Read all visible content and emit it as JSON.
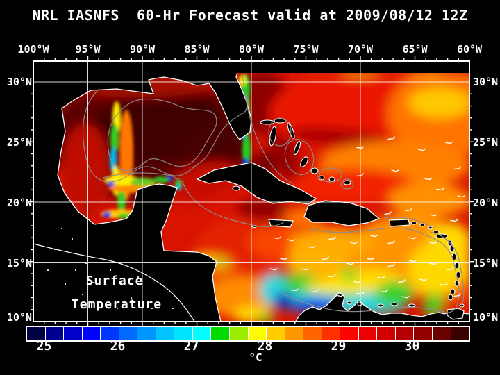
{
  "title": "NRL IASNFS  60-Hr Forecast valid at 2009/08/12 12Z",
  "map": {
    "top_axis_labels": [
      "100°W",
      "95°W",
      "90°W",
      "85°W",
      "80°W",
      "75°W",
      "70°W",
      "65°W",
      "60°W"
    ],
    "left_axis_labels": [
      "30°N",
      "25°N",
      "20°N",
      "15°N",
      "10°N"
    ],
    "right_axis_labels": [
      "30°N",
      "25°N",
      "20°N",
      "15°N",
      "10°N"
    ],
    "overlay_label": {
      "line1": "Surface",
      "line2": "Temperature"
    }
  },
  "colorbar": {
    "unit_label": "°C",
    "tick_labels": [
      "25",
      "26",
      "27",
      "28",
      "29",
      "30"
    ],
    "cells_per_tick": 4,
    "first_tick_after_cell": 1,
    "cell_colors": [
      "#000042",
      "#00008e",
      "#0000c8",
      "#0004ff",
      "#0037ff",
      "#006aff",
      "#0096ff",
      "#00c3ff",
      "#00e4ff",
      "#00ffff",
      "#00dc00",
      "#9bec00",
      "#fcfc00",
      "#ffcc00",
      "#ff9800",
      "#ff6400",
      "#ff3000",
      "#fc0400",
      "#ea0000",
      "#d20000",
      "#b40000",
      "#930000",
      "#6b0000",
      "#3a0000"
    ]
  },
  "colors": {
    "background": "#000000",
    "frame": "#ffffff",
    "grid": "#ffffff",
    "contour": "#8e8e8e",
    "land": "#000000",
    "coastline": "#ffffff",
    "text": "#ffffff"
  }
}
